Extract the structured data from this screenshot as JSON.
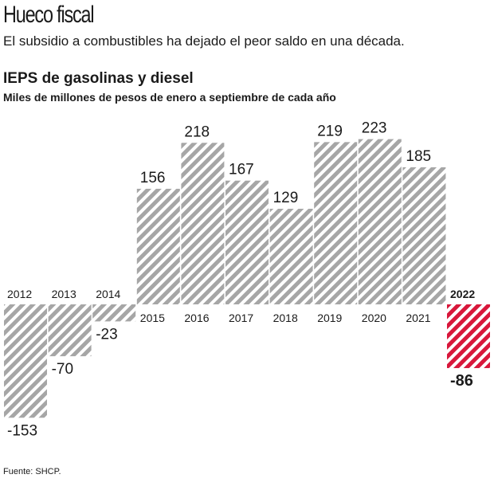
{
  "header": {
    "title": "Hueco fiscal",
    "subtitle": "El subsidio a combustibles ha dejado el peor saldo en una década."
  },
  "chart_data": {
    "type": "bar",
    "title": "IEPS de gasolinas y diesel",
    "subtitle": "Miles de millones de pesos de enero a septiembre de cada año",
    "categories": [
      "2012",
      "2013",
      "2014",
      "2015",
      "2016",
      "2017",
      "2018",
      "2019",
      "2020",
      "2021",
      "2022"
    ],
    "values": [
      -153,
      -70,
      -23,
      156,
      218,
      167,
      129,
      219,
      223,
      185,
      -86
    ],
    "highlight": "2022",
    "colors": {
      "default": "#a6a6a6",
      "highlight": "#d8173b"
    },
    "grid": false
  },
  "source": "Fuente: SHCP."
}
